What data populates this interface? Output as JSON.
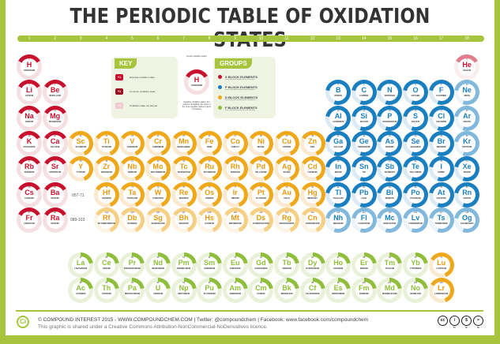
{
  "title": "THE PERIODIC TABLE OF OXIDATION STATES",
  "group_numbers": [
    "1",
    "2",
    "3",
    "4",
    "5",
    "6",
    "7",
    "8",
    "9",
    "10",
    "11",
    "12",
    "13",
    "14",
    "15",
    "16",
    "17",
    "18"
  ],
  "key": {
    "heading": "KEY",
    "rows": [
      {
        "swatch": "+1",
        "label": "Example oxidation state",
        "color": "#c8102e"
      },
      {
        "swatch": "+1",
        "label": "Common oxidation state",
        "color": "#9b0d23"
      },
      {
        "swatch": "+1",
        "label": "Oxidation state not formed",
        "color": "#f2c9cf"
      }
    ],
    "diagram": {
      "top_caption": "Known oxidation states",
      "symbol": "H",
      "name": "HYDROGEN",
      "bottom_caption": "Negative oxidation states. For reasons of legibility, the sizes of the most negative states is given in brackets."
    }
  },
  "groups": {
    "heading": "GROUPS",
    "items": [
      {
        "label": "S BLOCK ELEMENTS",
        "sub": "Last s sub-shell contains up to 2 electrons",
        "color": "#c8102e"
      },
      {
        "label": "P BLOCK ELEMENTS",
        "sub": "Last p sub-shell contains up to 6 electrons",
        "color": "#1a7fc1"
      },
      {
        "label": "D BLOCK ELEMENTS",
        "sub": "Last d sub-shell contains up to 10 electrons",
        "color": "#f0a81b"
      },
      {
        "label": "F BLOCK ELEMENTS",
        "sub": "Last f sub-shell contains up to 14 electrons",
        "color": "#8fbf3a"
      }
    ]
  },
  "range_labels": {
    "lanthanides": "057-71",
    "actinides": "089-103"
  },
  "elements": [
    {
      "sym": "H",
      "name": "HYDROGEN",
      "num": "1",
      "col": 1,
      "row": 1,
      "block": "s"
    },
    {
      "sym": "He",
      "name": "HELIUM",
      "num": "2",
      "col": 18,
      "row": 1,
      "block": "s",
      "faint": true
    },
    {
      "sym": "Li",
      "name": "LITHIUM",
      "num": "3",
      "col": 1,
      "row": 2,
      "block": "s"
    },
    {
      "sym": "Be",
      "name": "BERYLLIUM",
      "num": "4",
      "col": 2,
      "row": 2,
      "block": "s"
    },
    {
      "sym": "B",
      "name": "BORON",
      "num": "5",
      "col": 13,
      "row": 2,
      "block": "p"
    },
    {
      "sym": "C",
      "name": "CARBON",
      "num": "6",
      "col": 14,
      "row": 2,
      "block": "p"
    },
    {
      "sym": "N",
      "name": "NITROGEN",
      "num": "7",
      "col": 15,
      "row": 2,
      "block": "p"
    },
    {
      "sym": "O",
      "name": "OXYGEN",
      "num": "8",
      "col": 16,
      "row": 2,
      "block": "p"
    },
    {
      "sym": "F",
      "name": "FLUORINE",
      "num": "9",
      "col": 17,
      "row": 2,
      "block": "p"
    },
    {
      "sym": "Ne",
      "name": "NEON",
      "num": "10",
      "col": 18,
      "row": 2,
      "block": "p",
      "faint": true
    },
    {
      "sym": "Na",
      "name": "SODIUM",
      "num": "11",
      "col": 1,
      "row": 3,
      "block": "s"
    },
    {
      "sym": "Mg",
      "name": "MAGNESIUM",
      "num": "12",
      "col": 2,
      "row": 3,
      "block": "s"
    },
    {
      "sym": "Al",
      "name": "ALUMINIUM",
      "num": "13",
      "col": 13,
      "row": 3,
      "block": "p"
    },
    {
      "sym": "Si",
      "name": "SILICON",
      "num": "14",
      "col": 14,
      "row": 3,
      "block": "p"
    },
    {
      "sym": "P",
      "name": "PHOSPHORUS",
      "num": "15",
      "col": 15,
      "row": 3,
      "block": "p"
    },
    {
      "sym": "S",
      "name": "SULFUR",
      "num": "16",
      "col": 16,
      "row": 3,
      "block": "p"
    },
    {
      "sym": "Cl",
      "name": "CHLORINE",
      "num": "17",
      "col": 17,
      "row": 3,
      "block": "p"
    },
    {
      "sym": "Ar",
      "name": "ARGON",
      "num": "18",
      "col": 18,
      "row": 3,
      "block": "p",
      "faint": true
    },
    {
      "sym": "K",
      "name": "POTASSIUM",
      "num": "19",
      "col": 1,
      "row": 4,
      "block": "s"
    },
    {
      "sym": "Ca",
      "name": "CALCIUM",
      "num": "20",
      "col": 2,
      "row": 4,
      "block": "s"
    },
    {
      "sym": "Sc",
      "name": "SCANDIUM",
      "num": "21",
      "col": 3,
      "row": 4,
      "block": "d"
    },
    {
      "sym": "Ti",
      "name": "TITANIUM",
      "num": "22",
      "col": 4,
      "row": 4,
      "block": "d"
    },
    {
      "sym": "V",
      "name": "VANADIUM",
      "num": "23",
      "col": 5,
      "row": 4,
      "block": "d"
    },
    {
      "sym": "Cr",
      "name": "CHROMIUM",
      "num": "24",
      "col": 6,
      "row": 4,
      "block": "d"
    },
    {
      "sym": "Mn",
      "name": "MANGANESE",
      "num": "25",
      "col": 7,
      "row": 4,
      "block": "d"
    },
    {
      "sym": "Fe",
      "name": "IRON",
      "num": "26",
      "col": 8,
      "row": 4,
      "block": "d"
    },
    {
      "sym": "Co",
      "name": "COBALT",
      "num": "27",
      "col": 9,
      "row": 4,
      "block": "d"
    },
    {
      "sym": "Ni",
      "name": "NICKEL",
      "num": "28",
      "col": 10,
      "row": 4,
      "block": "d"
    },
    {
      "sym": "Cu",
      "name": "COPPER",
      "num": "29",
      "col": 11,
      "row": 4,
      "block": "d"
    },
    {
      "sym": "Zn",
      "name": "ZINC",
      "num": "30",
      "col": 12,
      "row": 4,
      "block": "d"
    },
    {
      "sym": "Ga",
      "name": "GALLIUM",
      "num": "31",
      "col": 13,
      "row": 4,
      "block": "p"
    },
    {
      "sym": "Ge",
      "name": "GERMANIUM",
      "num": "32",
      "col": 14,
      "row": 4,
      "block": "p"
    },
    {
      "sym": "As",
      "name": "ARSENIC",
      "num": "33",
      "col": 15,
      "row": 4,
      "block": "p"
    },
    {
      "sym": "Se",
      "name": "SELENIUM",
      "num": "34",
      "col": 16,
      "row": 4,
      "block": "p"
    },
    {
      "sym": "Br",
      "name": "BROMINE",
      "num": "35",
      "col": 17,
      "row": 4,
      "block": "p"
    },
    {
      "sym": "Kr",
      "name": "KRYPTON",
      "num": "36",
      "col": 18,
      "row": 4,
      "block": "p",
      "faint": true
    },
    {
      "sym": "Rb",
      "name": "RUBIDIUM",
      "num": "37",
      "col": 1,
      "row": 5,
      "block": "s"
    },
    {
      "sym": "Sr",
      "name": "STRONTIUM",
      "num": "38",
      "col": 2,
      "row": 5,
      "block": "s"
    },
    {
      "sym": "Y",
      "name": "YTTRIUM",
      "num": "39",
      "col": 3,
      "row": 5,
      "block": "d"
    },
    {
      "sym": "Zr",
      "name": "ZIRCONIUM",
      "num": "40",
      "col": 4,
      "row": 5,
      "block": "d"
    },
    {
      "sym": "Nb",
      "name": "NIOBIUM",
      "num": "41",
      "col": 5,
      "row": 5,
      "block": "d"
    },
    {
      "sym": "Mo",
      "name": "MOLYBDENUM",
      "num": "42",
      "col": 6,
      "row": 5,
      "block": "d"
    },
    {
      "sym": "Tc",
      "name": "TECHNETIUM",
      "num": "43",
      "col": 7,
      "row": 5,
      "block": "d"
    },
    {
      "sym": "Ru",
      "name": "RUTHENIUM",
      "num": "44",
      "col": 8,
      "row": 5,
      "block": "d"
    },
    {
      "sym": "Rh",
      "name": "RHODIUM",
      "num": "45",
      "col": 9,
      "row": 5,
      "block": "d"
    },
    {
      "sym": "Pd",
      "name": "PALLADIUM",
      "num": "46",
      "col": 10,
      "row": 5,
      "block": "d"
    },
    {
      "sym": "Ag",
      "name": "SILVER",
      "num": "47",
      "col": 11,
      "row": 5,
      "block": "d"
    },
    {
      "sym": "Cd",
      "name": "CADMIUM",
      "num": "48",
      "col": 12,
      "row": 5,
      "block": "d"
    },
    {
      "sym": "In",
      "name": "INDIUM",
      "num": "49",
      "col": 13,
      "row": 5,
      "block": "p"
    },
    {
      "sym": "Sn",
      "name": "TIN",
      "num": "50",
      "col": 14,
      "row": 5,
      "block": "p"
    },
    {
      "sym": "Sb",
      "name": "ANTIMONY",
      "num": "51",
      "col": 15,
      "row": 5,
      "block": "p"
    },
    {
      "sym": "Te",
      "name": "TELLURIUM",
      "num": "52",
      "col": 16,
      "row": 5,
      "block": "p"
    },
    {
      "sym": "I",
      "name": "IODINE",
      "num": "53",
      "col": 17,
      "row": 5,
      "block": "p"
    },
    {
      "sym": "Xe",
      "name": "XENON",
      "num": "54",
      "col": 18,
      "row": 5,
      "block": "p"
    },
    {
      "sym": "Cs",
      "name": "CAESIUM",
      "num": "55",
      "col": 1,
      "row": 6,
      "block": "s"
    },
    {
      "sym": "Ba",
      "name": "BARIUM",
      "num": "56",
      "col": 2,
      "row": 6,
      "block": "s"
    },
    {
      "sym": "Hf",
      "name": "HAFNIUM",
      "num": "72",
      "col": 4,
      "row": 6,
      "block": "d"
    },
    {
      "sym": "Ta",
      "name": "TANTALUM",
      "num": "73",
      "col": 5,
      "row": 6,
      "block": "d"
    },
    {
      "sym": "W",
      "name": "TUNGSTEN",
      "num": "74",
      "col": 6,
      "row": 6,
      "block": "d"
    },
    {
      "sym": "Re",
      "name": "RHENIUM",
      "num": "75",
      "col": 7,
      "row": 6,
      "block": "d"
    },
    {
      "sym": "Os",
      "name": "OSMIUM",
      "num": "76",
      "col": 8,
      "row": 6,
      "block": "d"
    },
    {
      "sym": "Ir",
      "name": "IRIDIUM",
      "num": "77",
      "col": 9,
      "row": 6,
      "block": "d"
    },
    {
      "sym": "Pt",
      "name": "PLATINUM",
      "num": "78",
      "col": 10,
      "row": 6,
      "block": "d"
    },
    {
      "sym": "Au",
      "name": "GOLD",
      "num": "79",
      "col": 11,
      "row": 6,
      "block": "d"
    },
    {
      "sym": "Hg",
      "name": "MERCURY",
      "num": "80",
      "col": 12,
      "row": 6,
      "block": "d"
    },
    {
      "sym": "Tl",
      "name": "THALLIUM",
      "num": "81",
      "col": 13,
      "row": 6,
      "block": "p"
    },
    {
      "sym": "Pb",
      "name": "LEAD",
      "num": "82",
      "col": 14,
      "row": 6,
      "block": "p"
    },
    {
      "sym": "Bi",
      "name": "BISMUTH",
      "num": "83",
      "col": 15,
      "row": 6,
      "block": "p"
    },
    {
      "sym": "Po",
      "name": "POLONIUM",
      "num": "84",
      "col": 16,
      "row": 6,
      "block": "p"
    },
    {
      "sym": "At",
      "name": "ASTATINE",
      "num": "85",
      "col": 17,
      "row": 6,
      "block": "p"
    },
    {
      "sym": "Rn",
      "name": "RADON",
      "num": "86",
      "col": 18,
      "row": 6,
      "block": "p"
    },
    {
      "sym": "Fr",
      "name": "FRANCIUM",
      "num": "87",
      "col": 1,
      "row": 7,
      "block": "s"
    },
    {
      "sym": "Ra",
      "name": "RADIUM",
      "num": "88",
      "col": 2,
      "row": 7,
      "block": "s"
    },
    {
      "sym": "Rf",
      "name": "RUTHERFORDIUM",
      "num": "104",
      "col": 4,
      "row": 7,
      "block": "d",
      "faint": true
    },
    {
      "sym": "Db",
      "name": "DUBNIUM",
      "num": "105",
      "col": 5,
      "row": 7,
      "block": "d",
      "faint": true
    },
    {
      "sym": "Sg",
      "name": "SEABORGIUM",
      "num": "106",
      "col": 6,
      "row": 7,
      "block": "d",
      "faint": true
    },
    {
      "sym": "Bh",
      "name": "BOHRIUM",
      "num": "107",
      "col": 7,
      "row": 7,
      "block": "d",
      "faint": true
    },
    {
      "sym": "Hs",
      "name": "HASSIUM",
      "num": "108",
      "col": 8,
      "row": 7,
      "block": "d",
      "faint": true
    },
    {
      "sym": "Mt",
      "name": "MEITNERIUM",
      "num": "109",
      "col": 9,
      "row": 7,
      "block": "d",
      "faint": true
    },
    {
      "sym": "Ds",
      "name": "DARMSTADTIUM",
      "num": "110",
      "col": 10,
      "row": 7,
      "block": "d",
      "faint": true
    },
    {
      "sym": "Rg",
      "name": "ROENTGENIUM",
      "num": "111",
      "col": 11,
      "row": 7,
      "block": "d",
      "faint": true
    },
    {
      "sym": "Cn",
      "name": "COPERNICIUM",
      "num": "112",
      "col": 12,
      "row": 7,
      "block": "d",
      "faint": true
    },
    {
      "sym": "Nh",
      "name": "NIHONIUM",
      "num": "113",
      "col": 13,
      "row": 7,
      "block": "p",
      "faint": true
    },
    {
      "sym": "Fl",
      "name": "FLEROVIUM",
      "num": "114",
      "col": 14,
      "row": 7,
      "block": "p",
      "faint": true
    },
    {
      "sym": "Mc",
      "name": "MOSCOVIUM",
      "num": "115",
      "col": 15,
      "row": 7,
      "block": "p",
      "faint": true
    },
    {
      "sym": "Lv",
      "name": "LIVERMORIUM",
      "num": "116",
      "col": 16,
      "row": 7,
      "block": "p",
      "faint": true
    },
    {
      "sym": "Ts",
      "name": "TENNESSINE",
      "num": "117",
      "col": 17,
      "row": 7,
      "block": "p",
      "faint": true
    },
    {
      "sym": "Og",
      "name": "OGANESSON",
      "num": "118",
      "col": 18,
      "row": 7,
      "block": "p",
      "faint": true
    },
    {
      "sym": "La",
      "name": "LANTHANUM",
      "num": "57",
      "col": 3,
      "row": 9,
      "block": "f"
    },
    {
      "sym": "Ce",
      "name": "CERIUM",
      "num": "58",
      "col": 4,
      "row": 9,
      "block": "f"
    },
    {
      "sym": "Pr",
      "name": "PRASEODYMIUM",
      "num": "59",
      "col": 5,
      "row": 9,
      "block": "f"
    },
    {
      "sym": "Nd",
      "name": "NEODYMIUM",
      "num": "60",
      "col": 6,
      "row": 9,
      "block": "f"
    },
    {
      "sym": "Pm",
      "name": "PROMETHIUM",
      "num": "61",
      "col": 7,
      "row": 9,
      "block": "f"
    },
    {
      "sym": "Sm",
      "name": "SAMARIUM",
      "num": "62",
      "col": 8,
      "row": 9,
      "block": "f"
    },
    {
      "sym": "Eu",
      "name": "EUROPIUM",
      "num": "63",
      "col": 9,
      "row": 9,
      "block": "f"
    },
    {
      "sym": "Gd",
      "name": "GADOLINIUM",
      "num": "64",
      "col": 10,
      "row": 9,
      "block": "f"
    },
    {
      "sym": "Tb",
      "name": "TERBIUM",
      "num": "65",
      "col": 11,
      "row": 9,
      "block": "f"
    },
    {
      "sym": "Dy",
      "name": "DYSPROSIUM",
      "num": "66",
      "col": 12,
      "row": 9,
      "block": "f"
    },
    {
      "sym": "Ho",
      "name": "HOLMIUM",
      "num": "67",
      "col": 13,
      "row": 9,
      "block": "f"
    },
    {
      "sym": "Er",
      "name": "ERBIUM",
      "num": "68",
      "col": 14,
      "row": 9,
      "block": "f"
    },
    {
      "sym": "Tm",
      "name": "THULIUM",
      "num": "69",
      "col": 15,
      "row": 9,
      "block": "f"
    },
    {
      "sym": "Yb",
      "name": "YTTERBIUM",
      "num": "70",
      "col": 16,
      "row": 9,
      "block": "f"
    },
    {
      "sym": "Lu",
      "name": "LUTETIUM",
      "num": "71",
      "col": 17,
      "row": 9,
      "block": "d"
    },
    {
      "sym": "Ac",
      "name": "ACTINIUM",
      "num": "89",
      "col": 3,
      "row": 10,
      "block": "f"
    },
    {
      "sym": "Th",
      "name": "THORIUM",
      "num": "90",
      "col": 4,
      "row": 10,
      "block": "f"
    },
    {
      "sym": "Pa",
      "name": "PROTACTINIUM",
      "num": "91",
      "col": 5,
      "row": 10,
      "block": "f"
    },
    {
      "sym": "U",
      "name": "URANIUM",
      "num": "92",
      "col": 6,
      "row": 10,
      "block": "f"
    },
    {
      "sym": "Np",
      "name": "NEPTUNIUM",
      "num": "93",
      "col": 7,
      "row": 10,
      "block": "f"
    },
    {
      "sym": "Pu",
      "name": "PLUTONIUM",
      "num": "94",
      "col": 8,
      "row": 10,
      "block": "f"
    },
    {
      "sym": "Am",
      "name": "AMERICIUM",
      "num": "95",
      "col": 9,
      "row": 10,
      "block": "f"
    },
    {
      "sym": "Cm",
      "name": "CURIUM",
      "num": "96",
      "col": 10,
      "row": 10,
      "block": "f"
    },
    {
      "sym": "Bk",
      "name": "BERKELIUM",
      "num": "97",
      "col": 11,
      "row": 10,
      "block": "f"
    },
    {
      "sym": "Cf",
      "name": "CALIFORNIUM",
      "num": "98",
      "col": 12,
      "row": 10,
      "block": "f"
    },
    {
      "sym": "Es",
      "name": "EINSTEINIUM",
      "num": "99",
      "col": 13,
      "row": 10,
      "block": "f"
    },
    {
      "sym": "Fm",
      "name": "FERMIUM",
      "num": "100",
      "col": 14,
      "row": 10,
      "block": "f"
    },
    {
      "sym": "Md",
      "name": "MENDELEVIUM",
      "num": "101",
      "col": 15,
      "row": 10,
      "block": "f"
    },
    {
      "sym": "No",
      "name": "NOBELIUM",
      "num": "102",
      "col": 16,
      "row": 10,
      "block": "f"
    },
    {
      "sym": "Lr",
      "name": "LAWRENCIUM",
      "num": "103",
      "col": 17,
      "row": 10,
      "block": "d"
    }
  ],
  "footer": {
    "logo": "Ci",
    "line1": "© COMPOUND INTEREST 2015 - WWW.COMPOUNDCHEM.COM | Twitter: @compoundchem | Facebook: www.facebook.com/compoundchem",
    "line2": "This graphic is shared under a Creative Commons Attribution-NonCommercial-NoDerivatives licence.",
    "licence_badges": [
      {
        "glyph": "cc",
        "label": ""
      },
      {
        "glyph": "i",
        "label": "BY"
      },
      {
        "glyph": "$",
        "label": "NC"
      },
      {
        "glyph": "=",
        "label": "ND"
      }
    ]
  }
}
